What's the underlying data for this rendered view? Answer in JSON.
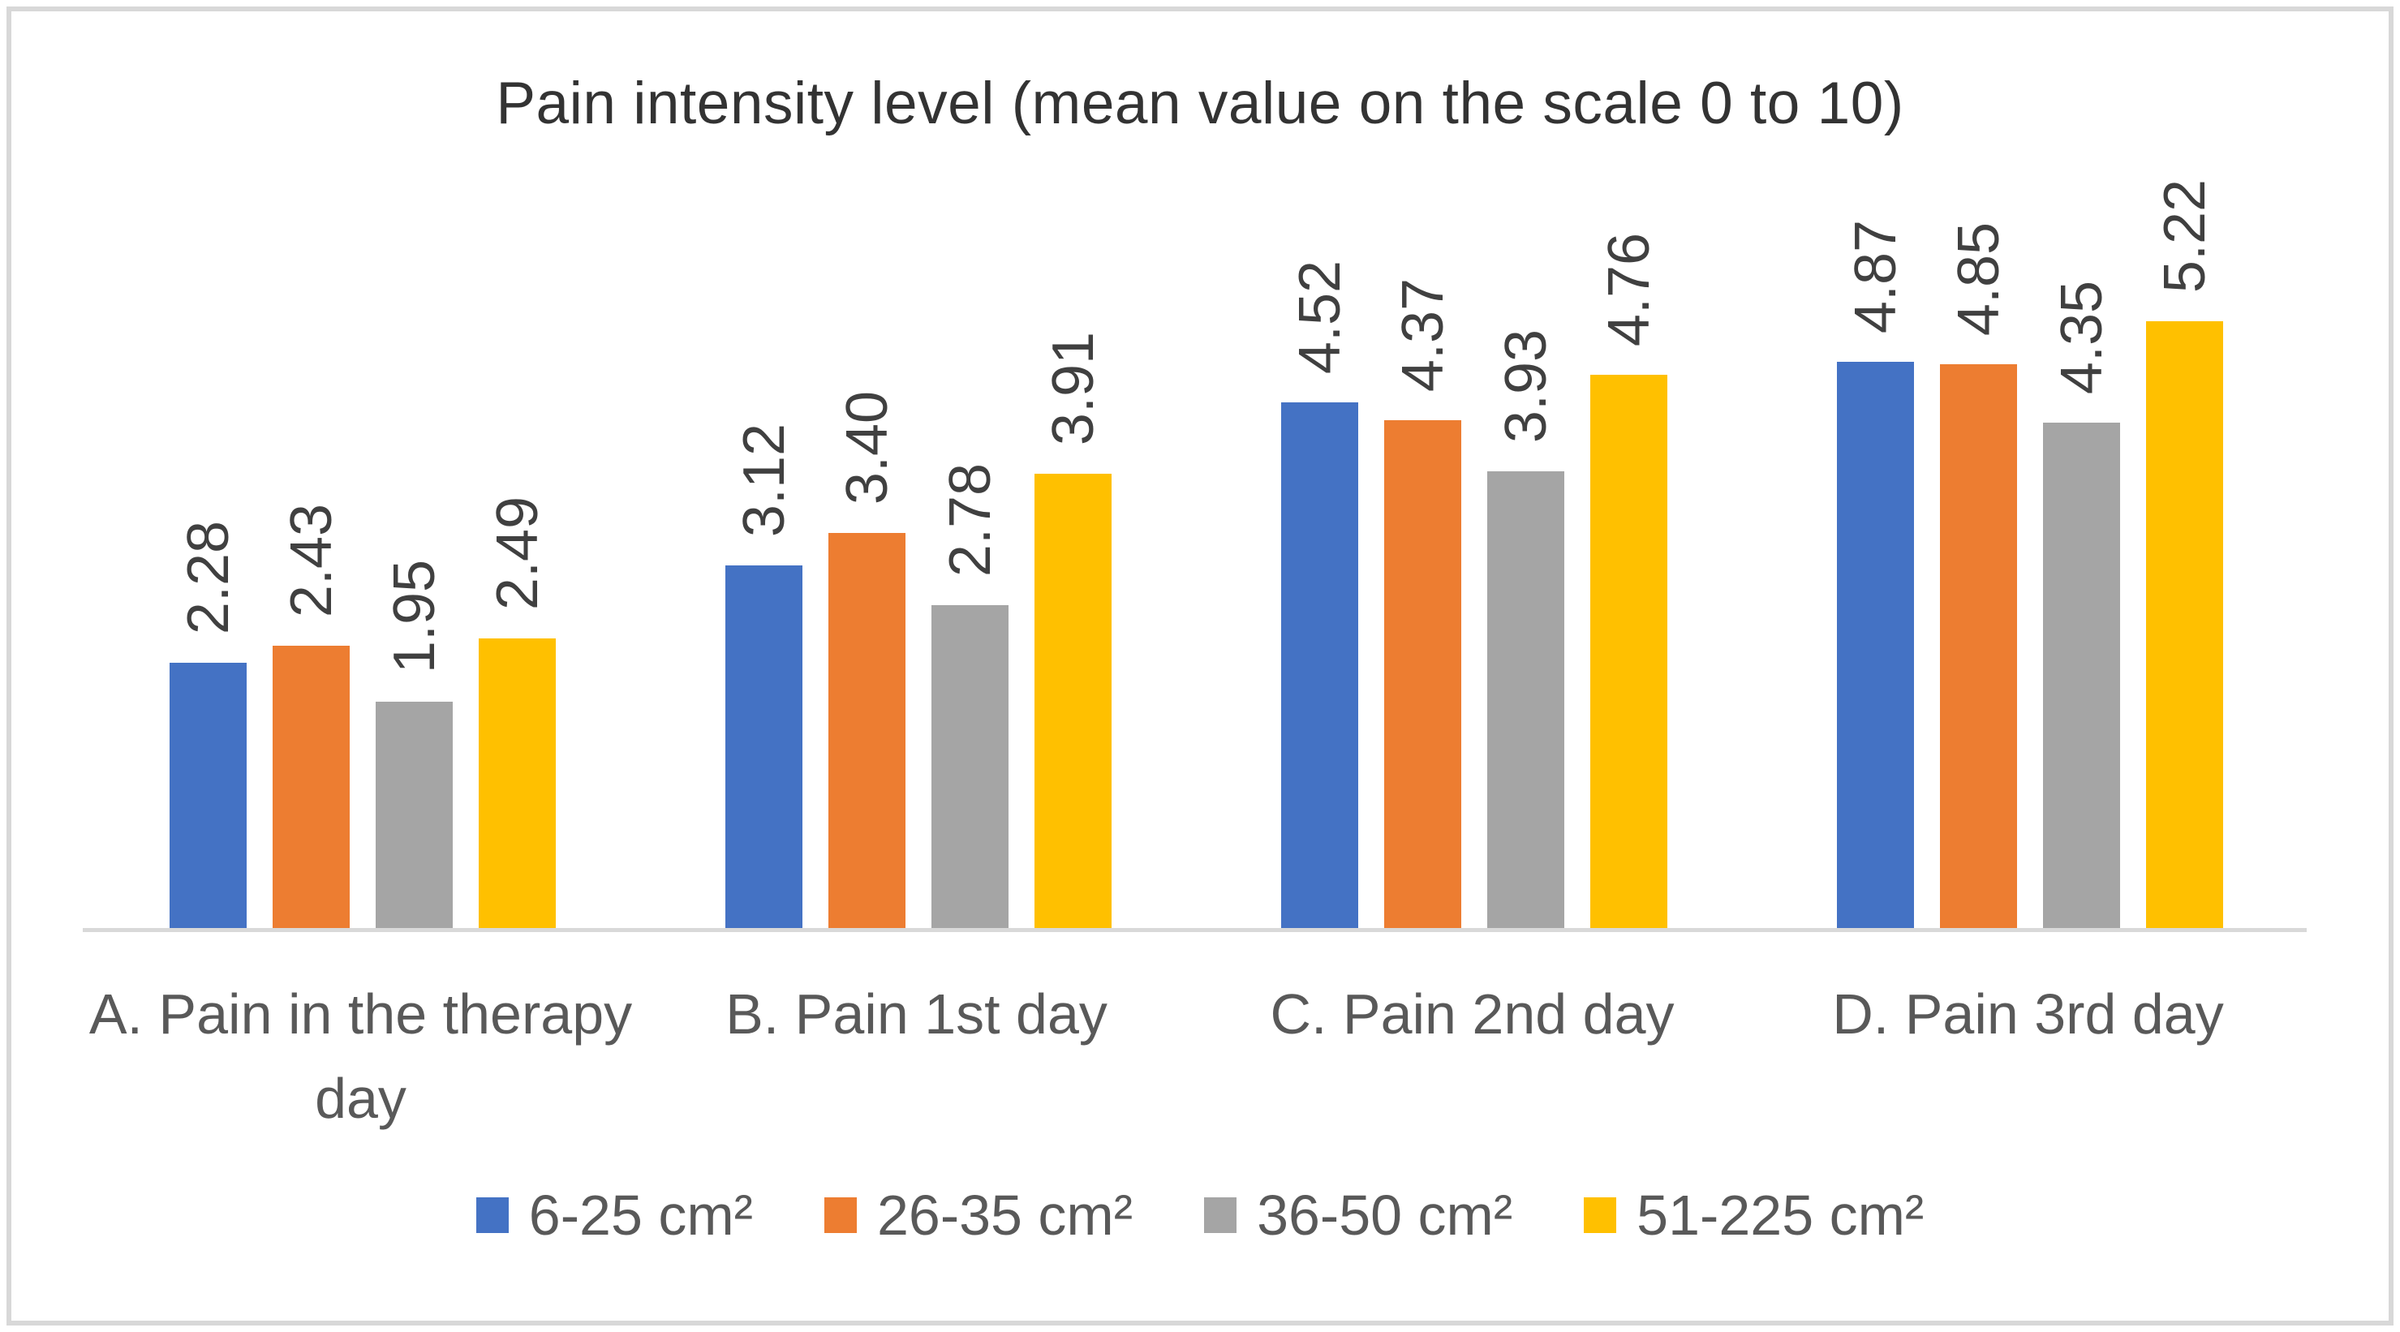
{
  "figure": {
    "title": "Pain intensity level (mean value on the scale 0 to 10)"
  },
  "chart_data": {
    "type": "bar",
    "title": "Pain intensity level (mean value on the scale 0 to 10)",
    "categories": [
      "A. Pain in the therapy day",
      "B. Pain 1st day",
      "C. Pain 2nd day",
      "D. Pain 3rd day"
    ],
    "category_label_lines": [
      [
        "A. Pain in the therapy",
        "day"
      ],
      [
        "B. Pain 1st day"
      ],
      [
        "C. Pain 2nd day"
      ],
      [
        "D. Pain 3rd day"
      ]
    ],
    "series": [
      {
        "name": "6-25 cm²",
        "color": "#4472C4",
        "values": [
          2.28,
          3.12,
          4.52,
          4.87
        ]
      },
      {
        "name": "26-35 cm²",
        "color": "#ED7D31",
        "values": [
          2.43,
          3.4,
          4.37,
          4.85
        ]
      },
      {
        "name": "36-50 cm²",
        "color": "#A5A5A5",
        "values": [
          1.95,
          2.78,
          3.93,
          4.35
        ]
      },
      {
        "name": "51-225 cm²",
        "color": "#FFC000",
        "values": [
          2.49,
          3.91,
          4.76,
          5.22
        ]
      }
    ],
    "value_axis": {
      "scale_description": "0 to 10",
      "ticks_visible": false,
      "gridlines": false
    },
    "data_labels": {
      "visible": true,
      "format": "0.00",
      "rotation_degrees": -90,
      "position": "outside_end"
    },
    "legend": {
      "position": "bottom",
      "entries": [
        "6-25 cm²",
        "26-35 cm²",
        "36-50 cm²",
        "51-225 cm²"
      ]
    }
  },
  "colors": {
    "background": "#FFFFFF",
    "border": "#D8D8D8",
    "axis_line": "#D9D9D9",
    "title_text": "#333333",
    "data_label_text": "#404040",
    "category_text": "#595959",
    "legend_text": "#595959",
    "series_blue": "#4472C4",
    "series_orange": "#ED7D31",
    "series_gray": "#A5A5A5",
    "series_yellow": "#FFC000"
  }
}
